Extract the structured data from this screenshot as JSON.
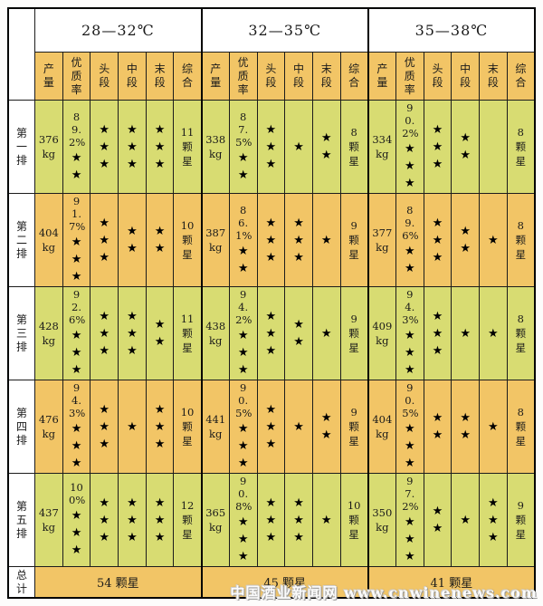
{
  "chart_data": {
    "type": "table",
    "temperature_groups": [
      "28—32℃",
      "32—35℃",
      "35—38℃"
    ],
    "columns": [
      "产量",
      "优质率",
      "头段",
      "中段",
      "末段",
      "综合"
    ],
    "column_keys": [
      "yield",
      "quality-rate",
      "head-stage",
      "mid-stage",
      "tail-stage",
      "composite"
    ],
    "rows": [
      {
        "label": "第一排",
        "groups": [
          {
            "yield": "376 kg",
            "rate": "89.2%",
            "rate_stars": 2,
            "head_stars": 3,
            "mid_stars": 3,
            "tail_stars": 3,
            "composite": "11 颗星"
          },
          {
            "yield": "338 kg",
            "rate": "87.5%",
            "rate_stars": 2,
            "head_stars": 3,
            "mid_stars": 1,
            "tail_stars": 2,
            "composite": "8 颗星"
          },
          {
            "yield": "334 kg",
            "rate": "90.2%",
            "rate_stars": 3,
            "head_stars": 3,
            "mid_stars": 2,
            "tail_stars": 0,
            "composite": "8 颗星"
          }
        ]
      },
      {
        "label": "第二排",
        "groups": [
          {
            "yield": "404 kg",
            "rate": "91.7%",
            "rate_stars": 3,
            "head_stars": 3,
            "mid_stars": 2,
            "tail_stars": 2,
            "composite": "10 颗星"
          },
          {
            "yield": "387 kg",
            "rate": "86.1%",
            "rate_stars": 2,
            "head_stars": 3,
            "mid_stars": 3,
            "tail_stars": 1,
            "composite": "9 颗星"
          },
          {
            "yield": "377 kg",
            "rate": "89.6%",
            "rate_stars": 2,
            "head_stars": 3,
            "mid_stars": 2,
            "tail_stars": 1,
            "composite": "8 颗星"
          }
        ]
      },
      {
        "label": "第三排",
        "groups": [
          {
            "yield": "428 kg",
            "rate": "92.6%",
            "rate_stars": 3,
            "head_stars": 3,
            "mid_stars": 3,
            "tail_stars": 2,
            "composite": "11 颗星"
          },
          {
            "yield": "438 kg",
            "rate": "94.2%",
            "rate_stars": 3,
            "head_stars": 3,
            "mid_stars": 2,
            "tail_stars": 1,
            "composite": "9 颗星"
          },
          {
            "yield": "409 kg",
            "rate": "94.3%",
            "rate_stars": 3,
            "head_stars": 3,
            "mid_stars": 1,
            "tail_stars": 1,
            "composite": "8 颗星"
          }
        ]
      },
      {
        "label": "第四排",
        "groups": [
          {
            "yield": "476 kg",
            "rate": "94.3%",
            "rate_stars": 3,
            "head_stars": 3,
            "mid_stars": 1,
            "tail_stars": 3,
            "composite": "10 颗星"
          },
          {
            "yield": "441 kg",
            "rate": "90.5%",
            "rate_stars": 3,
            "head_stars": 3,
            "mid_stars": 1,
            "tail_stars": 2,
            "composite": "9 颗星"
          },
          {
            "yield": "404 kg",
            "rate": "90.5%",
            "rate_stars": 3,
            "head_stars": 2,
            "mid_stars": 2,
            "tail_stars": 1,
            "composite": "8 颗星"
          }
        ]
      },
      {
        "label": "第五排",
        "groups": [
          {
            "yield": "437 kg",
            "rate": "100%",
            "rate_stars": 3,
            "head_stars": 3,
            "mid_stars": 3,
            "tail_stars": 3,
            "composite": "12 颗星"
          },
          {
            "yield": "365 kg",
            "rate": "90.8%",
            "rate_stars": 3,
            "head_stars": 3,
            "mid_stars": 3,
            "tail_stars": 1,
            "composite": "10 颗星"
          },
          {
            "yield": "350 kg",
            "rate": "97.2%",
            "rate_stars": 3,
            "head_stars": 2,
            "mid_stars": 1,
            "tail_stars": 3,
            "composite": "9 颗星"
          }
        ]
      }
    ],
    "total_label": "总计",
    "totals": [
      "54 颗星",
      "45 颗星",
      "41 颗星"
    ]
  },
  "icons": {
    "star_glyph": "★"
  },
  "colors": {
    "orange_row": "#F2C566",
    "green_row": "#D8DC72",
    "star": "#000000",
    "grid_line": "#1c1c1c"
  },
  "watermark": {
    "site": "中国酒业新闻网",
    "url": "www.cnwinenews.com"
  }
}
